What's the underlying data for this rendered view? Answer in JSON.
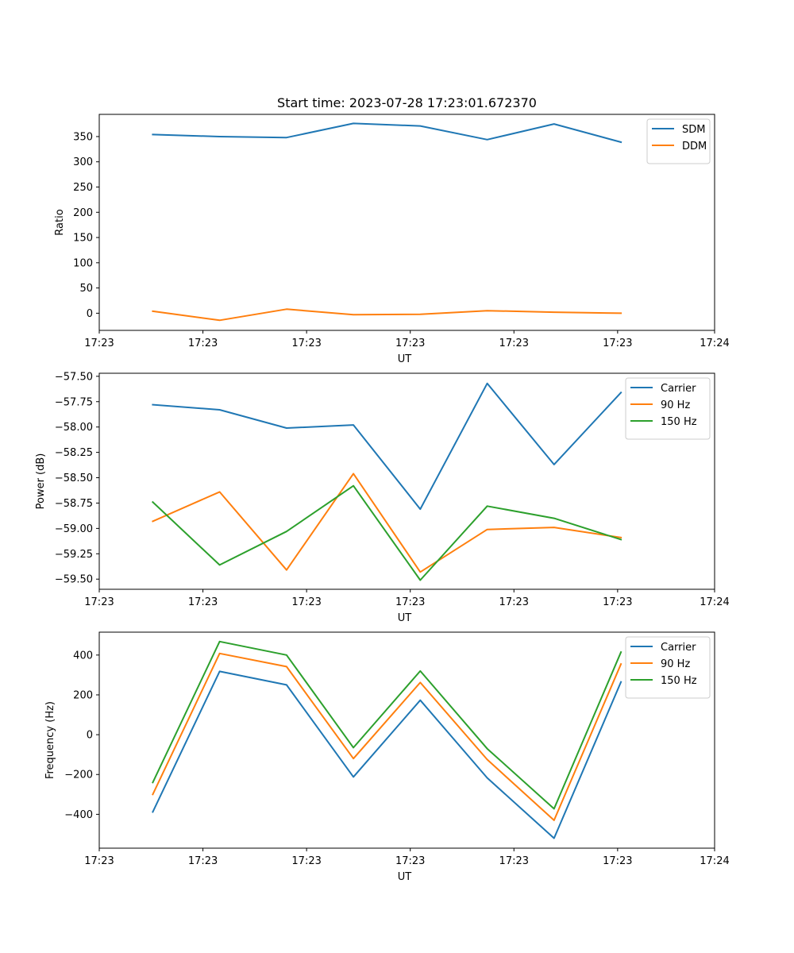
{
  "figure": {
    "title": "Start time: 2023-07-28 17:23:01.672370"
  },
  "colors": {
    "blue": "#1f77b4",
    "orange": "#ff7f0e",
    "green": "#2ca02c"
  },
  "chart_data": [
    {
      "type": "line",
      "title": "Start time: 2023-07-28 17:23:01.672370",
      "xlabel": "UT",
      "ylabel": "Ratio",
      "x": [
        1,
        2,
        3,
        4,
        5,
        6,
        7,
        8
      ],
      "xlim": [
        0.2,
        9.4
      ],
      "xticks": [
        0.2,
        1.75,
        3.3,
        4.85,
        6.4,
        7.95,
        9.4
      ],
      "xtick_labels": [
        "17:23",
        "17:23",
        "17:23",
        "17:23",
        "17:23",
        "17:23",
        "17:24"
      ],
      "ylim": [
        -34,
        394
      ],
      "yticks": [
        0,
        50,
        100,
        150,
        200,
        250,
        300,
        350
      ],
      "ytick_labels": [
        "0",
        "50",
        "100",
        "150",
        "200",
        "250",
        "300",
        "350"
      ],
      "legend_position": "upper-right",
      "series": [
        {
          "name": "SDM",
          "color": "#1f77b4",
          "values": [
            354,
            350,
            348,
            376,
            371,
            344,
            375,
            339
          ]
        },
        {
          "name": "DDM",
          "color": "#ff7f0e",
          "values": [
            4,
            -14,
            8,
            -3,
            -2,
            5,
            2,
            0
          ]
        }
      ]
    },
    {
      "type": "line",
      "xlabel": "UT",
      "ylabel": "Power (dB)",
      "x": [
        1,
        2,
        3,
        4,
        5,
        6,
        7,
        8
      ],
      "xlim": [
        0.2,
        9.4
      ],
      "xticks": [
        0.2,
        1.75,
        3.3,
        4.85,
        6.4,
        7.95,
        9.4
      ],
      "xtick_labels": [
        "17:23",
        "17:23",
        "17:23",
        "17:23",
        "17:23",
        "17:23",
        "17:24"
      ],
      "ylim": [
        -59.6,
        -57.47
      ],
      "yticks": [
        -59.5,
        -59.25,
        -59.0,
        -58.75,
        -58.5,
        -58.25,
        -58.0,
        -57.75,
        -57.5
      ],
      "ytick_labels": [
        "−59.50",
        "−59.25",
        "−59.00",
        "−58.75",
        "−58.50",
        "−58.25",
        "−58.00",
        "−57.75",
        "−57.50"
      ],
      "legend_position": "upper-right",
      "series": [
        {
          "name": "Carrier",
          "color": "#1f77b4",
          "values": [
            -57.78,
            -57.83,
            -58.01,
            -57.98,
            -58.81,
            -57.57,
            -58.37,
            -57.66
          ]
        },
        {
          "name": "90 Hz",
          "color": "#ff7f0e",
          "values": [
            -58.93,
            -58.64,
            -59.41,
            -58.46,
            -59.43,
            -59.01,
            -58.99,
            -59.09
          ]
        },
        {
          "name": "150 Hz",
          "color": "#2ca02c",
          "values": [
            -58.74,
            -59.36,
            -59.03,
            -58.58,
            -59.51,
            -58.78,
            -58.9,
            -59.11
          ]
        }
      ]
    },
    {
      "type": "line",
      "xlabel": "UT",
      "ylabel": "Frequency (Hz)",
      "x": [
        1,
        2,
        3,
        4,
        5,
        6,
        7,
        8
      ],
      "xlim": [
        0.2,
        9.4
      ],
      "xticks": [
        0.2,
        1.75,
        3.3,
        4.85,
        6.4,
        7.95,
        9.4
      ],
      "xtick_labels": [
        "17:23",
        "17:23",
        "17:23",
        "17:23",
        "17:23",
        "17:23",
        "17:24"
      ],
      "ylim": [
        -570,
        515
      ],
      "yticks": [
        -400,
        -200,
        0,
        200,
        400
      ],
      "ytick_labels": [
        "−400",
        "−200",
        "0",
        "200",
        "400"
      ],
      "legend_position": "upper-right",
      "series": [
        {
          "name": "Carrier",
          "color": "#1f77b4",
          "values": [
            -388,
            318,
            250,
            -212,
            173,
            -217,
            -520,
            265
          ]
        },
        {
          "name": "90 Hz",
          "color": "#ff7f0e",
          "values": [
            -300,
            408,
            342,
            -120,
            262,
            -125,
            -430,
            355
          ]
        },
        {
          "name": "150 Hz",
          "color": "#2ca02c",
          "values": [
            -240,
            468,
            400,
            -65,
            320,
            -70,
            -372,
            415
          ]
        }
      ]
    }
  ]
}
